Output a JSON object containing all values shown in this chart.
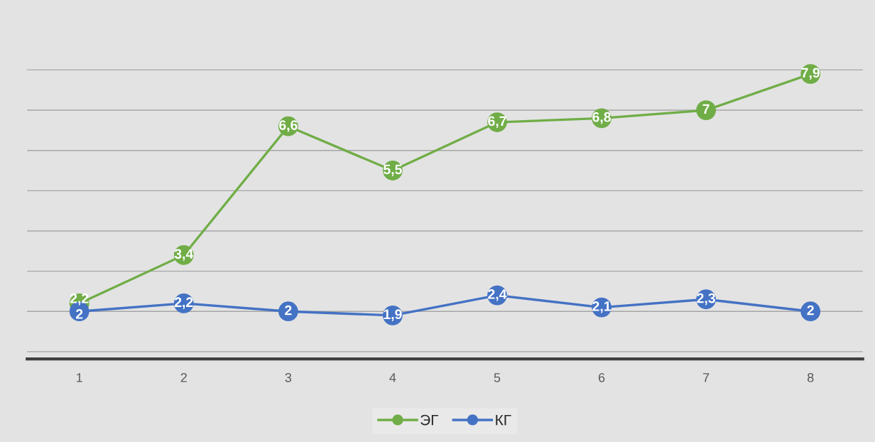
{
  "chart_data": {
    "type": "line",
    "categories": [
      "1",
      "2",
      "3",
      "4",
      "5",
      "6",
      "7",
      "8"
    ],
    "series": [
      {
        "name": "ЭГ",
        "color": "#70ad47",
        "values": [
          2.2,
          3.4,
          6.6,
          5.5,
          6.7,
          6.8,
          7,
          7.9
        ],
        "value_labels": [
          "2,2",
          "3,4",
          "6,6",
          "5,5",
          "6,7",
          "6,8",
          "7",
          "7,9"
        ]
      },
      {
        "name": "КГ",
        "color": "#4472c4",
        "values": [
          2,
          2.2,
          2,
          1.9,
          2.4,
          2.1,
          2.3,
          2
        ],
        "value_labels": [
          "2",
          "2,2",
          "2",
          "1,9",
          "2,4",
          "2,1",
          "2,3",
          "2"
        ]
      }
    ],
    "tick_labels": "x",
    "grid": "y",
    "legend": "bottom",
    "marker": "circle",
    "line_style": "solid"
  }
}
